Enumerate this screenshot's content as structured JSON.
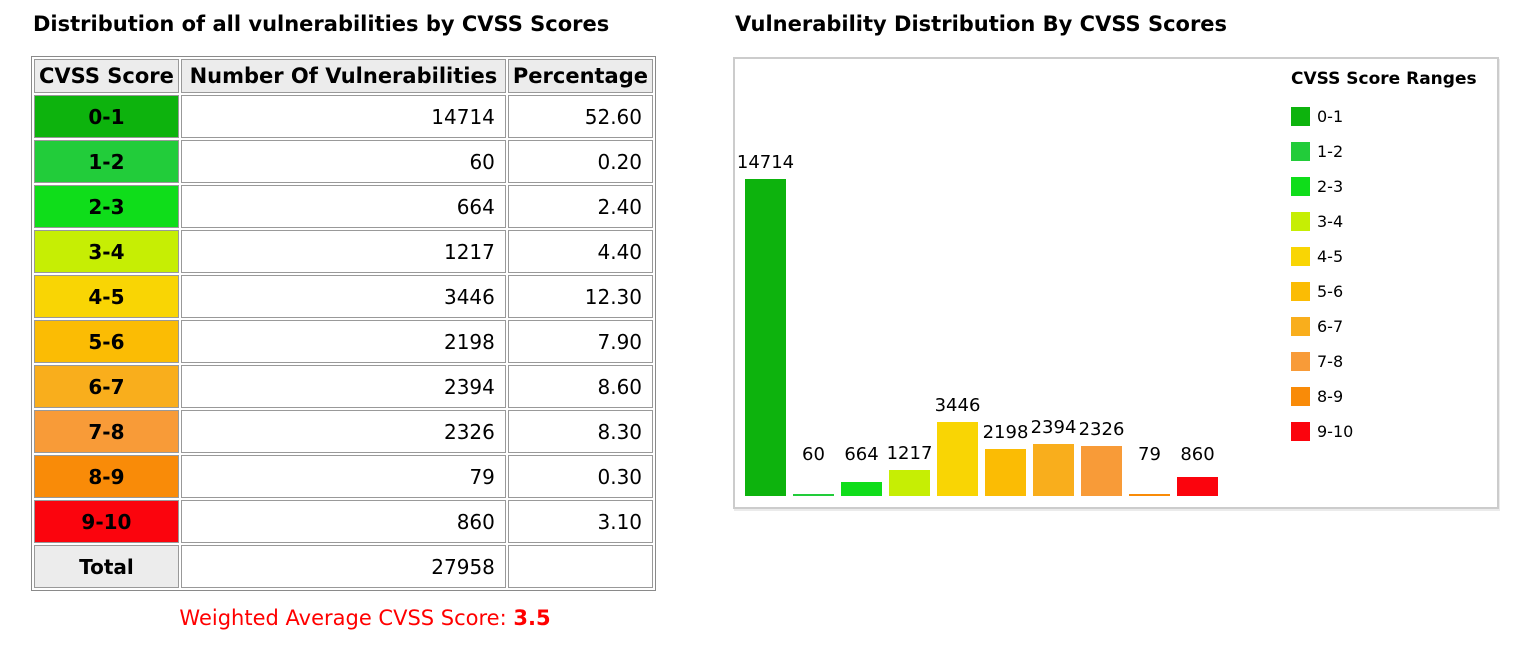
{
  "left_panel": {
    "title": "Distribution of all vulnerabilities by CVSS Scores",
    "table": {
      "headers": [
        "CVSS Score",
        "Number Of Vulnerabilities",
        "Percentage"
      ],
      "rows": [
        {
          "range": "0-1",
          "count": "14714",
          "percentage": "52.60",
          "color": "#0db30d"
        },
        {
          "range": "1-2",
          "count": "60",
          "percentage": "0.20",
          "color": "#22cc3a"
        },
        {
          "range": "2-3",
          "count": "664",
          "percentage": "2.40",
          "color": "#0fdd1a"
        },
        {
          "range": "3-4",
          "count": "1217",
          "percentage": "4.40",
          "color": "#c6ee04"
        },
        {
          "range": "4-5",
          "count": "3446",
          "percentage": "12.30",
          "color": "#f9d504"
        },
        {
          "range": "5-6",
          "count": "2198",
          "percentage": "7.90",
          "color": "#fbbc04"
        },
        {
          "range": "6-7",
          "count": "2394",
          "percentage": "8.60",
          "color": "#f9ae1c"
        },
        {
          "range": "7-8",
          "count": "2326",
          "percentage": "8.30",
          "color": "#f89b38"
        },
        {
          "range": "8-9",
          "count": "79",
          "percentage": "0.30",
          "color": "#f98b08"
        },
        {
          "range": "9-10",
          "count": "860",
          "percentage": "3.10",
          "color": "#fb040d"
        }
      ],
      "total": {
        "label": "Total",
        "count": "27958",
        "percentage": ""
      }
    },
    "footer": {
      "label": "Weighted Average CVSS Score: ",
      "value": "3.5",
      "color": "#ff0000"
    }
  },
  "right_panel": {
    "title": "Vulnerability Distribution By CVSS Scores",
    "legend_title": "CVSS Score Ranges"
  },
  "chart_data": {
    "type": "bar",
    "title": "Vulnerability Distribution By CVSS Scores",
    "categories": [
      "0-1",
      "1-2",
      "2-3",
      "3-4",
      "4-5",
      "5-6",
      "6-7",
      "7-8",
      "8-9",
      "9-10"
    ],
    "values": [
      14714,
      60,
      664,
      1217,
      3446,
      2198,
      2394,
      2326,
      79,
      860
    ],
    "colors": [
      "#0db30d",
      "#22cc3a",
      "#0fdd1a",
      "#c6ee04",
      "#f9d504",
      "#fbbc04",
      "#f9ae1c",
      "#f89b38",
      "#f98b08",
      "#fb040d"
    ],
    "bar_value_labels": true,
    "legend_title": "CVSS Score Ranges",
    "legend_position": "right",
    "xlabel": "",
    "ylabel": "",
    "ylim": [
      0,
      14714
    ],
    "grid": false,
    "axes_visible": false
  }
}
